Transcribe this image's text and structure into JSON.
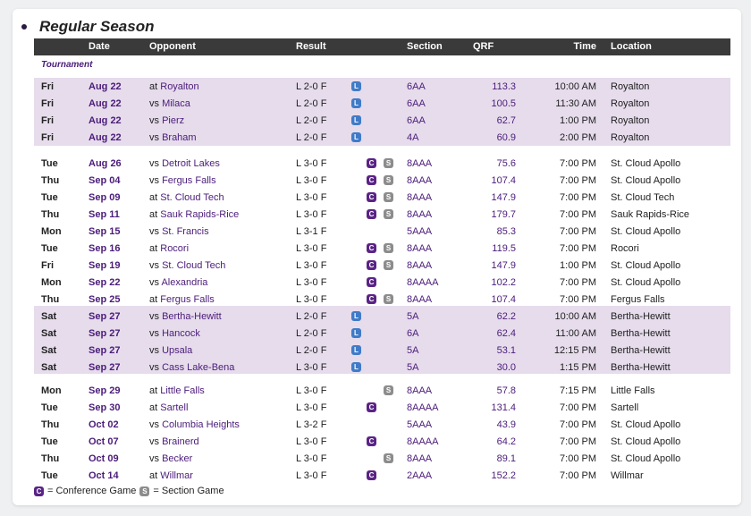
{
  "title": "Regular Season",
  "headers": {
    "date": "Date",
    "opponent": "Opponent",
    "result": "Result",
    "section": "Section",
    "qrf": "QRF",
    "time": "Time",
    "location": "Location"
  },
  "group_label": "Tournament",
  "colors": {
    "conference": "#5a2386",
    "section": "#8c8c8c",
    "tournament": "#3f7bc8",
    "band": "#e6dcec",
    "header": "#3a3a3a"
  },
  "badges": {
    "conference": "C",
    "section": "S",
    "tournament": "L"
  },
  "rows": [
    {
      "day": "Fri",
      "date": "Aug 22",
      "prefix": "at",
      "opponent": "Royalton",
      "result": "L 2-0 F",
      "badges": [
        "L"
      ],
      "section": "6AA",
      "qrf": "113.3",
      "time": "10:00 AM",
      "location": "Royalton"
    },
    {
      "day": "Fri",
      "date": "Aug 22",
      "prefix": "vs",
      "opponent": "Milaca",
      "result": "L 2-0 F",
      "badges": [
        "L"
      ],
      "section": "6AA",
      "qrf": "100.5",
      "time": "11:30 AM",
      "location": "Royalton"
    },
    {
      "day": "Fri",
      "date": "Aug 22",
      "prefix": "vs",
      "opponent": "Pierz",
      "result": "L 2-0 F",
      "badges": [
        "L"
      ],
      "section": "6AA",
      "qrf": "62.7",
      "time": "1:00 PM",
      "location": "Royalton"
    },
    {
      "day": "Fri",
      "date": "Aug 22",
      "prefix": "vs",
      "opponent": "Braham",
      "result": "L 2-0 F",
      "badges": [
        "L"
      ],
      "section": "4A",
      "qrf": "60.9",
      "time": "2:00 PM",
      "location": "Royalton"
    },
    {
      "day": "Tue",
      "date": "Aug 26",
      "prefix": "vs",
      "opponent": "Detroit Lakes",
      "result": "L 3-0 F",
      "badges": [
        "C",
        "S"
      ],
      "section": "8AAA",
      "qrf": "75.6",
      "time": "7:00 PM",
      "location": "St. Cloud Apollo"
    },
    {
      "day": "Thu",
      "date": "Sep 04",
      "prefix": "vs",
      "opponent": "Fergus Falls",
      "result": "L 3-0 F",
      "badges": [
        "C",
        "S"
      ],
      "section": "8AAA",
      "qrf": "107.4",
      "time": "7:00 PM",
      "location": "St. Cloud Apollo"
    },
    {
      "day": "Tue",
      "date": "Sep 09",
      "prefix": "at",
      "opponent": "St. Cloud Tech",
      "result": "L 3-0 F",
      "badges": [
        "C",
        "S"
      ],
      "section": "8AAA",
      "qrf": "147.9",
      "time": "7:00 PM",
      "location": "St. Cloud Tech"
    },
    {
      "day": "Thu",
      "date": "Sep 11",
      "prefix": "at",
      "opponent": "Sauk Rapids-Rice",
      "result": "L 3-0 F",
      "badges": [
        "C",
        "S"
      ],
      "section": "8AAA",
      "qrf": "179.7",
      "time": "7:00 PM",
      "location": "Sauk Rapids-Rice"
    },
    {
      "day": "Mon",
      "date": "Sep 15",
      "prefix": "vs",
      "opponent": "St. Francis",
      "result": "L 3-1 F",
      "badges": [],
      "section": "5AAA",
      "qrf": "85.3",
      "time": "7:00 PM",
      "location": "St. Cloud Apollo"
    },
    {
      "day": "Tue",
      "date": "Sep 16",
      "prefix": "at",
      "opponent": "Rocori",
      "result": "L 3-0 F",
      "badges": [
        "C",
        "S"
      ],
      "section": "8AAA",
      "qrf": "119.5",
      "time": "7:00 PM",
      "location": "Rocori"
    },
    {
      "day": "Fri",
      "date": "Sep 19",
      "prefix": "vs",
      "opponent": "St. Cloud Tech",
      "result": "L 3-0 F",
      "badges": [
        "C",
        "S"
      ],
      "section": "8AAA",
      "qrf": "147.9",
      "time": "1:00 PM",
      "location": "St. Cloud Apollo"
    },
    {
      "day": "Mon",
      "date": "Sep 22",
      "prefix": "vs",
      "opponent": "Alexandria",
      "result": "L 3-0 F",
      "badges": [
        "C"
      ],
      "section": "8AAAA",
      "qrf": "102.2",
      "time": "7:00 PM",
      "location": "St. Cloud Apollo"
    },
    {
      "day": "Thu",
      "date": "Sep 25",
      "prefix": "at",
      "opponent": "Fergus Falls",
      "result": "L 3-0 F",
      "badges": [
        "C",
        "S"
      ],
      "section": "8AAA",
      "qrf": "107.4",
      "time": "7:00 PM",
      "location": "Fergus Falls"
    },
    {
      "day": "Sat",
      "date": "Sep 27",
      "prefix": "vs",
      "opponent": "Bertha-Hewitt",
      "result": "L 2-0 F",
      "badges": [
        "L"
      ],
      "section": "5A",
      "qrf": "62.2",
      "time": "10:00 AM",
      "location": "Bertha-Hewitt"
    },
    {
      "day": "Sat",
      "date": "Sep 27",
      "prefix": "vs",
      "opponent": "Hancock",
      "result": "L 2-0 F",
      "badges": [
        "L"
      ],
      "section": "6A",
      "qrf": "62.4",
      "time": "11:00 AM",
      "location": "Bertha-Hewitt"
    },
    {
      "day": "Sat",
      "date": "Sep 27",
      "prefix": "vs",
      "opponent": "Upsala",
      "result": "L 2-0 F",
      "badges": [
        "L"
      ],
      "section": "5A",
      "qrf": "53.1",
      "time": "12:15 PM",
      "location": "Bertha-Hewitt"
    },
    {
      "day": "Sat",
      "date": "Sep 27",
      "prefix": "vs",
      "opponent": "Cass Lake-Bena",
      "result": "L 3-0 F",
      "badges": [
        "L"
      ],
      "section": "5A",
      "qrf": "30.0",
      "time": "1:15 PM",
      "location": "Bertha-Hewitt"
    },
    {
      "day": "Mon",
      "date": "Sep 29",
      "prefix": "at",
      "opponent": "Little Falls",
      "result": "L 3-0 F",
      "badges": [
        "S"
      ],
      "section": "8AAA",
      "qrf": "57.8",
      "time": "7:15 PM",
      "location": "Little Falls"
    },
    {
      "day": "Tue",
      "date": "Sep 30",
      "prefix": "at",
      "opponent": "Sartell",
      "result": "L 3-0 F",
      "badges": [
        "C"
      ],
      "section": "8AAAA",
      "qrf": "131.4",
      "time": "7:00 PM",
      "location": "Sartell"
    },
    {
      "day": "Thu",
      "date": "Oct 02",
      "prefix": "vs",
      "opponent": "Columbia Heights",
      "result": "L 3-2 F",
      "badges": [],
      "section": "5AAA",
      "qrf": "43.9",
      "time": "7:00 PM",
      "location": "St. Cloud Apollo"
    },
    {
      "day": "Tue",
      "date": "Oct 07",
      "prefix": "vs",
      "opponent": "Brainerd",
      "result": "L 3-0 F",
      "badges": [
        "C"
      ],
      "section": "8AAAA",
      "qrf": "64.2",
      "time": "7:00 PM",
      "location": "St. Cloud Apollo"
    },
    {
      "day": "Thu",
      "date": "Oct 09",
      "prefix": "vs",
      "opponent": "Becker",
      "result": "L 3-0 F",
      "badges": [
        "S"
      ],
      "section": "8AAA",
      "qrf": "89.1",
      "time": "7:00 PM",
      "location": "St. Cloud Apollo"
    },
    {
      "day": "Tue",
      "date": "Oct 14",
      "prefix": "at",
      "opponent": "Willmar",
      "result": "L 3-0 F",
      "badges": [
        "C"
      ],
      "section": "2AAA",
      "qrf": "152.2",
      "time": "7:00 PM",
      "location": "Willmar"
    }
  ],
  "legend": {
    "conference": "= Conference Game",
    "section": "= Section Game"
  }
}
